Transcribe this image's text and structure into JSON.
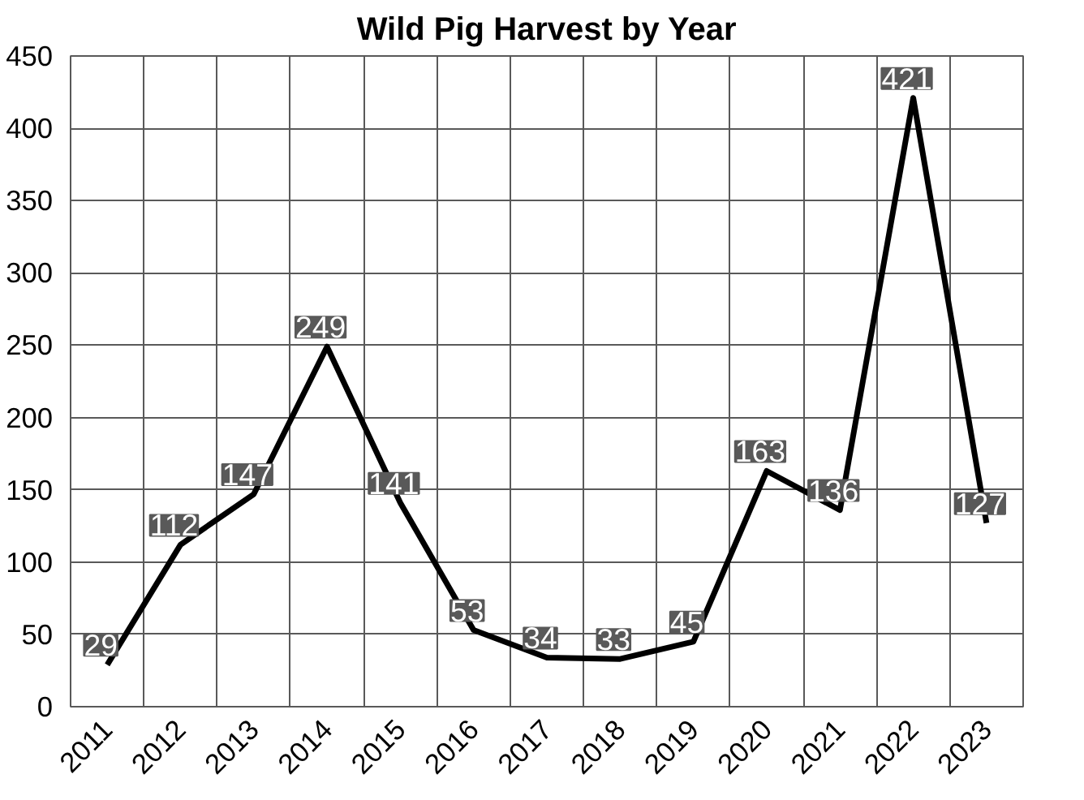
{
  "chart_data": {
    "type": "line",
    "title": "Wild Pig Harvest by Year",
    "categories": [
      "2011",
      "2012",
      "2013",
      "2014",
      "2015",
      "2016",
      "2017",
      "2018",
      "2019",
      "2020",
      "2021",
      "2022",
      "2023"
    ],
    "series": [
      {
        "color": "#000000",
        "values": [
          29,
          112,
          147,
          249,
          141,
          53,
          34,
          33,
          45,
          163,
          136,
          421,
          127
        ]
      }
    ],
    "ylim": [
      0,
      450
    ],
    "yticks": [
      0,
      50,
      100,
      150,
      200,
      250,
      300,
      350,
      400,
      450
    ],
    "grid": true,
    "data_labels": true,
    "marker": "none",
    "line_style": "solid"
  }
}
